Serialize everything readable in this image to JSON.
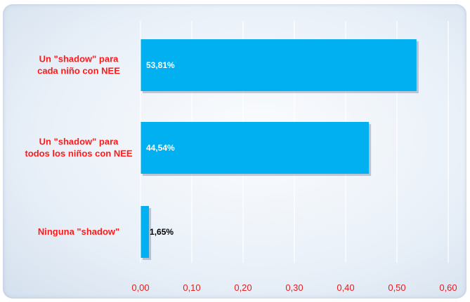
{
  "chart_data": {
    "type": "bar",
    "orientation": "horizontal",
    "categories": [
      [
        "Un \"shadow\" para",
        "cada niño con NEE"
      ],
      [
        "Un \"shadow\" para",
        "todos los niños con NEE"
      ],
      [
        "Ninguna \"shadow\""
      ]
    ],
    "values": [
      0.5381,
      0.4454,
      0.0165
    ],
    "data_labels": [
      "53,81%",
      "44,54%",
      "1,65%"
    ],
    "xlim": [
      0,
      0.6
    ],
    "xticks": [
      "0,00",
      "0,10",
      "0,20",
      "0,30",
      "0,40",
      "0,50",
      "0,60"
    ],
    "grid": true,
    "colors": {
      "bar": "#00b0f0",
      "category_text": "#ff1a1a",
      "tick_text": "#e02020",
      "label_inside": "#ffffff",
      "label_outside": "#000000"
    }
  }
}
